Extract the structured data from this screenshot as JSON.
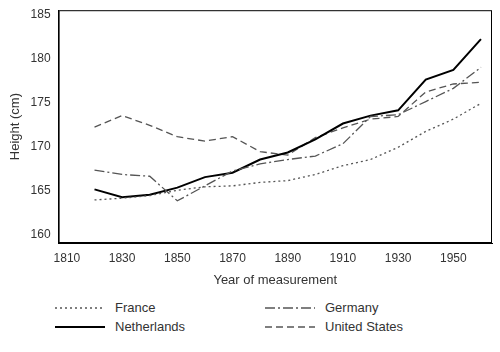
{
  "chart_data": {
    "type": "line",
    "x_label": "Year of measurement",
    "y_label": "Height (cm)",
    "x": [
      1820,
      1830,
      1840,
      1850,
      1860,
      1870,
      1880,
      1890,
      1900,
      1910,
      1920,
      1930,
      1940,
      1950,
      1960
    ],
    "series": [
      {
        "name": "France",
        "color": "#555555",
        "line_style": "dotted",
        "values": [
          163.9,
          164.1,
          164.4,
          165.0,
          165.4,
          165.5,
          165.9,
          166.1,
          166.8,
          167.8,
          168.5,
          169.9,
          171.7,
          173.1,
          174.9
        ]
      },
      {
        "name": "Germany",
        "color": "#555555",
        "line_style": "dashdot",
        "values": [
          167.3,
          166.8,
          166.6,
          163.8,
          165.5,
          167.2,
          168.0,
          168.5,
          168.9,
          170.3,
          173.4,
          173.6,
          175.1,
          176.6,
          179.0
        ]
      },
      {
        "name": "Netherlands",
        "color": "#000000",
        "line_style": "solid",
        "values": [
          165.1,
          164.2,
          164.5,
          165.3,
          166.5,
          167.0,
          168.5,
          169.3,
          170.8,
          172.6,
          173.5,
          174.1,
          177.6,
          178.7,
          182.2
        ]
      },
      {
        "name": "United States",
        "color": "#555555",
        "line_style": "dashed",
        "values": [
          172.2,
          173.5,
          172.4,
          171.1,
          170.6,
          171.1,
          169.4,
          169.0,
          171.0,
          172.1,
          173.1,
          173.4,
          176.2,
          177.1,
          177.3
        ]
      }
    ],
    "xlim": [
      1807,
      1964
    ],
    "xticks": [
      1810,
      1830,
      1850,
      1870,
      1890,
      1910,
      1930,
      1950
    ],
    "ylim": [
      159,
      185.5
    ],
    "yticks": [
      160,
      165,
      170,
      175,
      180,
      185
    ],
    "grid": false,
    "legend": "bottom"
  }
}
